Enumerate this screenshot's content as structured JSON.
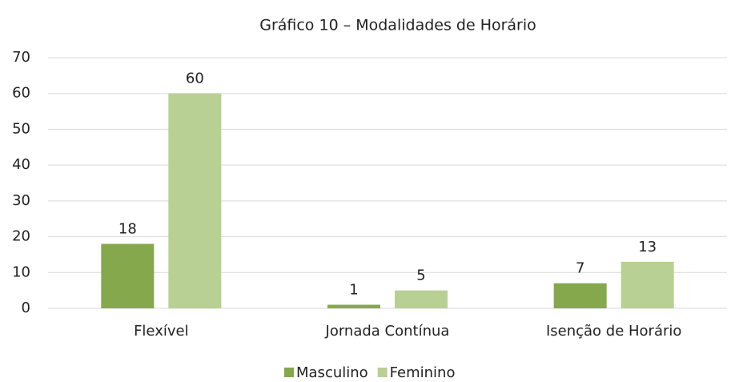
{
  "chart_data": {
    "type": "bar",
    "title": "Gráfico 10 – Modalidades de Horário",
    "categories": [
      "Flexível",
      "Jornada Contínua",
      "Isenção de Horário"
    ],
    "series": [
      {
        "name": "Masculino",
        "color": "#86a84d",
        "values": [
          18,
          1,
          7
        ]
      },
      {
        "name": "Feminino",
        "color": "#b8d093",
        "values": [
          60,
          5,
          13
        ]
      }
    ],
    "ylim": [
      0,
      70
    ],
    "yticks": [
      0,
      10,
      20,
      30,
      40,
      50,
      60,
      70
    ],
    "grid": true,
    "legend": "bottom"
  }
}
